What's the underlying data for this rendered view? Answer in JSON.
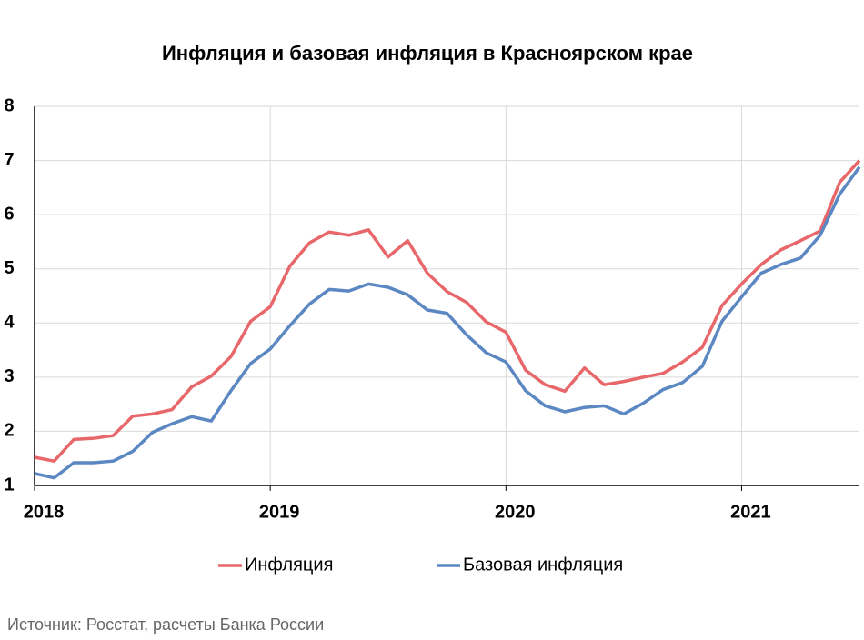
{
  "chart_data": {
    "type": "line",
    "title": "Инфляция и базовая инфляция в Красноярском крае",
    "source": "Источник: Росстат, расчеты Банка России",
    "categories": [
      "2018",
      null,
      null,
      null,
      null,
      null,
      null,
      null,
      null,
      null,
      null,
      null,
      "2019",
      null,
      null,
      null,
      null,
      null,
      null,
      null,
      null,
      null,
      null,
      null,
      "2020",
      null,
      null,
      null,
      null,
      null,
      null,
      null,
      null,
      null,
      null,
      null,
      "2021",
      null,
      null,
      null,
      null,
      null,
      null
    ],
    "series": [
      {
        "name": "Инфляция",
        "color": "#e8676a",
        "values": [
          1.52,
          1.45,
          1.85,
          1.87,
          1.92,
          2.28,
          2.32,
          2.4,
          2.82,
          3.02,
          3.38,
          4.03,
          4.3,
          5.05,
          5.48,
          5.68,
          5.62,
          5.72,
          5.22,
          5.52,
          4.92,
          4.58,
          4.38,
          4.02,
          3.83,
          3.13,
          2.86,
          2.74,
          3.17,
          2.86,
          2.92,
          3.0,
          3.07,
          3.28,
          3.55,
          4.32,
          4.72,
          5.08,
          5.35,
          5.52,
          5.7,
          6.6,
          7.0
        ]
      },
      {
        "name": "Базовая инфляция",
        "color": "#5b87c2",
        "values": [
          1.22,
          1.14,
          1.42,
          1.42,
          1.45,
          1.63,
          1.98,
          2.14,
          2.27,
          2.19,
          2.75,
          3.25,
          3.52,
          3.95,
          4.35,
          4.62,
          4.59,
          4.72,
          4.66,
          4.52,
          4.24,
          4.18,
          3.78,
          3.45,
          3.28,
          2.75,
          2.47,
          2.36,
          2.44,
          2.47,
          2.32,
          2.52,
          2.77,
          2.9,
          3.2,
          4.03,
          4.48,
          4.92,
          5.08,
          5.2,
          5.62,
          6.38,
          6.88
        ]
      }
    ],
    "ylim": [
      1,
      8
    ],
    "yticks": [
      1,
      2,
      3,
      4,
      5,
      6,
      7,
      8
    ],
    "grid": true,
    "legend": "bottom"
  }
}
